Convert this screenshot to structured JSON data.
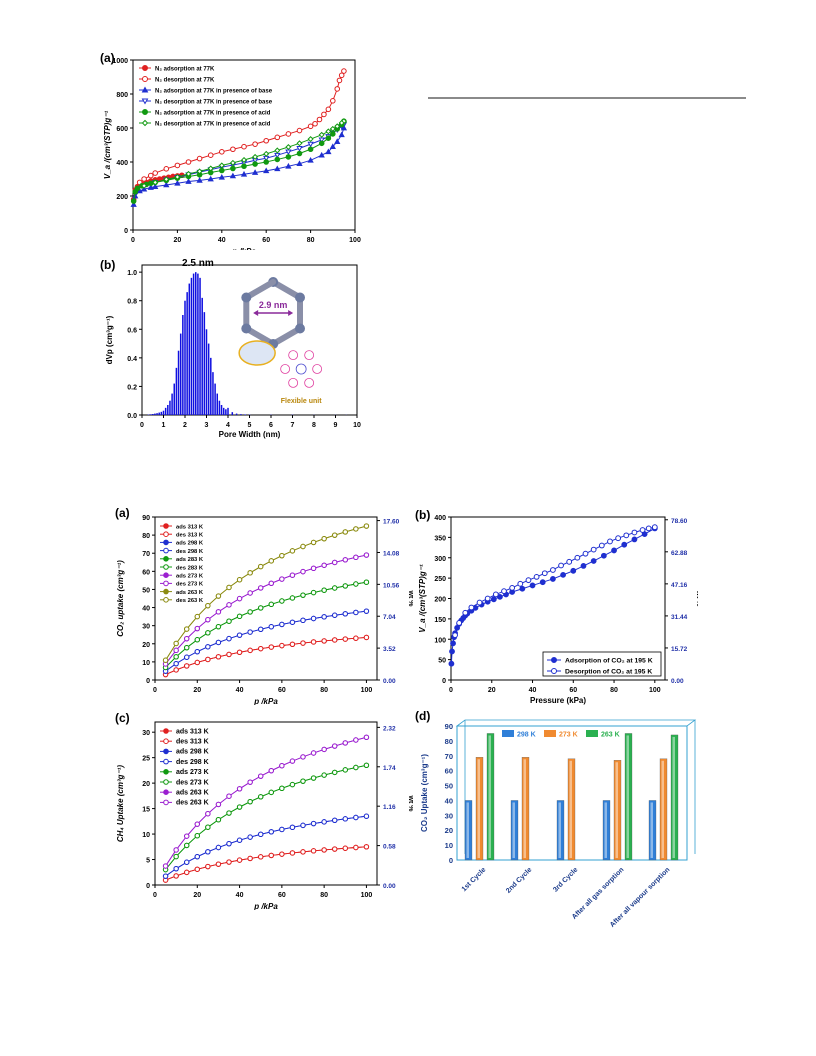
{
  "chart_data": [
    {
      "id": "n2",
      "type": "line",
      "panel_label": "(a)",
      "xlabel": "p /kPa",
      "ylabel": "V_a /(cm³(STP)g⁻¹",
      "xlim": [
        0,
        100
      ],
      "ylim": [
        0,
        1000
      ],
      "xticks": [
        "0",
        "20",
        "40",
        "60",
        "80",
        "100"
      ],
      "yticks": [
        "0",
        "200",
        "400",
        "600",
        "800",
        "1000"
      ],
      "legend_position": "top-left",
      "series": [
        {
          "name": "N₂ adsorption at 77K",
          "color": "#e02020",
          "marker": "circle",
          "filled": true,
          "x": [
            0.3,
            1,
            2,
            4,
            6,
            8,
            10,
            12,
            14,
            16,
            18,
            20,
            22
          ],
          "y": [
            180,
            235,
            255,
            270,
            280,
            288,
            295,
            300,
            305,
            310,
            315,
            318,
            322
          ]
        },
        {
          "name": "N₂ desorption at 77K",
          "color": "#e02020",
          "marker": "circle",
          "filled": false,
          "x": [
            95,
            94,
            93,
            92,
            90,
            88,
            86,
            84,
            82,
            80,
            75,
            70,
            65,
            60,
            55,
            50,
            45,
            40,
            35,
            30,
            25,
            20,
            15,
            10,
            8,
            5,
            3
          ],
          "y": [
            935,
            910,
            880,
            830,
            760,
            710,
            680,
            650,
            625,
            610,
            585,
            565,
            545,
            525,
            505,
            490,
            475,
            460,
            440,
            420,
            400,
            380,
            360,
            335,
            320,
            300,
            280
          ]
        },
        {
          "name": "N₂ adsorption at 77K in presence of base",
          "color": "#1f2fd0",
          "marker": "triangle",
          "filled": true,
          "x": [
            0.3,
            1,
            3,
            5,
            8,
            10,
            15,
            20,
            25,
            30,
            35,
            40,
            45,
            50,
            55,
            60,
            65,
            70,
            75,
            80,
            85,
            88,
            90,
            92,
            94,
            95
          ],
          "y": [
            150,
            200,
            230,
            240,
            250,
            255,
            265,
            275,
            285,
            292,
            300,
            310,
            318,
            328,
            338,
            348,
            360,
            375,
            390,
            410,
            440,
            460,
            490,
            520,
            560,
            600
          ]
        },
        {
          "name": "N₂ desorption at 77K in presence of base",
          "color": "#1f2fd0",
          "marker": "triangle-down",
          "filled": false,
          "x": [
            95,
            94,
            92,
            90,
            88,
            85,
            80,
            75,
            70,
            65,
            60,
            55,
            50,
            45,
            40,
            35,
            30,
            25,
            20,
            15,
            10,
            5
          ],
          "y": [
            620,
            610,
            590,
            570,
            550,
            530,
            505,
            480,
            460,
            440,
            422,
            410,
            395,
            382,
            370,
            355,
            340,
            325,
            310,
            295,
            280,
            255
          ]
        },
        {
          "name": "N₂ adsorption at 77K in presence of acid",
          "color": "#119911",
          "marker": "circle",
          "filled": true,
          "x": [
            0.3,
            1,
            2,
            4,
            6,
            8,
            10,
            15,
            20,
            25,
            30,
            35,
            40,
            45,
            50,
            55,
            60,
            65,
            70,
            75,
            80,
            85,
            88,
            90,
            92,
            94,
            95
          ],
          "y": [
            170,
            225,
            245,
            260,
            268,
            275,
            280,
            292,
            305,
            315,
            325,
            338,
            350,
            362,
            375,
            388,
            400,
            415,
            430,
            450,
            475,
            510,
            540,
            565,
            595,
            620,
            640
          ]
        },
        {
          "name": "N₂ desorption at 77K in presence of acid",
          "color": "#119911",
          "marker": "diamond",
          "filled": false,
          "x": [
            95,
            94,
            92,
            90,
            88,
            85,
            80,
            75,
            70,
            65,
            60,
            55,
            50,
            45,
            40,
            35,
            30,
            25,
            20,
            15,
            10,
            5
          ],
          "y": [
            640,
            630,
            610,
            595,
            580,
            560,
            535,
            510,
            488,
            468,
            448,
            430,
            412,
            395,
            380,
            362,
            345,
            330,
            312,
            298,
            280,
            260
          ]
        }
      ]
    },
    {
      "id": "pore",
      "type": "bar",
      "panel_label": "(b)",
      "xlabel": "Pore Width (nm)",
      "ylabel": "dVp (cm³g⁻¹)",
      "xlim": [
        0,
        10
      ],
      "ylim": [
        0,
        1.05
      ],
      "xticks": [
        "0",
        "1",
        "2",
        "3",
        "4",
        "5",
        "6",
        "7",
        "8",
        "9",
        "10"
      ],
      "yticks": [
        "0.0",
        "0.2",
        "0.4",
        "0.6",
        "0.8",
        "1.0"
      ],
      "annotation_peak": "2.5 nm",
      "annotation_cavity": "2.9 nm",
      "annotation_unit": "Flexible unit",
      "color": "#1010e0",
      "x": [
        0.3,
        0.4,
        0.5,
        0.6,
        0.7,
        0.8,
        0.9,
        1.0,
        1.1,
        1.2,
        1.3,
        1.4,
        1.5,
        1.6,
        1.7,
        1.8,
        1.9,
        2.0,
        2.1,
        2.2,
        2.3,
        2.4,
        2.5,
        2.6,
        2.7,
        2.8,
        2.9,
        3.0,
        3.1,
        3.2,
        3.3,
        3.4,
        3.5,
        3.6,
        3.7,
        3.8,
        3.9,
        4.0,
        4.2,
        4.4,
        4.6,
        4.8,
        5.0,
        6.0,
        7.0,
        8.0,
        9.0,
        9.5
      ],
      "values": [
        0.003,
        0.005,
        0.007,
        0.01,
        0.013,
        0.017,
        0.022,
        0.03,
        0.05,
        0.07,
        0.1,
        0.15,
        0.22,
        0.33,
        0.45,
        0.57,
        0.7,
        0.8,
        0.86,
        0.92,
        0.96,
        0.99,
        1.0,
        0.99,
        0.96,
        0.82,
        0.72,
        0.6,
        0.5,
        0.4,
        0.3,
        0.22,
        0.15,
        0.1,
        0.07,
        0.05,
        0.04,
        0.05,
        0.02,
        0.01,
        0.006,
        0.004,
        0.003,
        0.002,
        0.002,
        0.001,
        0.001,
        0.001
      ]
    },
    {
      "id": "co2",
      "type": "line",
      "panel_label": "(a)",
      "xlabel": "p /kPa",
      "ylabel": "CO₂ uptake (cm³g⁻¹)",
      "ylabel_right": "wt %",
      "xlim": [
        0,
        105
      ],
      "ylim": [
        0,
        90
      ],
      "xticks": [
        "0",
        "20",
        "40",
        "60",
        "80",
        "100"
      ],
      "yticks": [
        "0",
        "10",
        "20",
        "30",
        "40",
        "50",
        "60",
        "70",
        "80",
        "90"
      ],
      "right_ticks": [
        "0.00",
        "3.52",
        "7.04",
        "10.56",
        "14.08",
        "17.60"
      ],
      "legend_position": "top-left",
      "series": [
        {
          "name": "ads 313 K",
          "color": "#e02020",
          "filled": true,
          "ymax": 23.5
        },
        {
          "name": "des 313 K",
          "color": "#e02020",
          "filled": false,
          "ymax": 23.5
        },
        {
          "name": "ads 298 K",
          "color": "#1f2fd0",
          "filled": true,
          "ymax": 38
        },
        {
          "name": "des 298 K",
          "color": "#1f2fd0",
          "filled": false,
          "ymax": 38
        },
        {
          "name": "ads 283 K",
          "color": "#119911",
          "filled": true,
          "ymax": 54
        },
        {
          "name": "des 283 K",
          "color": "#119911",
          "filled": false,
          "ymax": 54
        },
        {
          "name": "ads 273 K",
          "color": "#9b1fd0",
          "filled": true,
          "ymax": 69
        },
        {
          "name": "des 273 K",
          "color": "#9b1fd0",
          "filled": false,
          "ymax": 69
        },
        {
          "name": "ads 263 K",
          "color": "#8b8b10",
          "filled": true,
          "ymax": 85
        },
        {
          "name": "des 263 K",
          "color": "#8b8b10",
          "filled": false,
          "ymax": 85
        }
      ]
    },
    {
      "id": "co2-195",
      "type": "line",
      "panel_label": "(b)",
      "xlabel": "Pressure (kPa)",
      "ylabel": "V_a /(cm³(STP)g⁻¹",
      "ylabel_right": "wt %",
      "xlim": [
        0,
        105
      ],
      "ylim": [
        0,
        400
      ],
      "xticks": [
        "0",
        "20",
        "40",
        "60",
        "80",
        "100"
      ],
      "yticks": [
        "0",
        "50",
        "100",
        "150",
        "200",
        "250",
        "300",
        "350",
        "400"
      ],
      "right_ticks": [
        "0.00",
        "15.72",
        "31.44",
        "47.16",
        "62.88",
        "78.60"
      ],
      "legend_position": "bottom-right",
      "series": [
        {
          "name": "Adsorption of CO₂ at 195 K",
          "color": "#1f2fd0",
          "filled": true,
          "x": [
            0.2,
            0.5,
            1,
            1.5,
            2,
            3,
            4,
            5,
            6,
            7,
            8,
            10,
            12,
            15,
            18,
            21,
            24,
            27,
            30,
            35,
            40,
            45,
            50,
            55,
            60,
            65,
            70,
            75,
            80,
            85,
            90,
            95,
            100
          ],
          "y": [
            40,
            70,
            90,
            105,
            115,
            128,
            138,
            146,
            152,
            158,
            163,
            170,
            177,
            185,
            192,
            198,
            204,
            210,
            216,
            224,
            232,
            240,
            248,
            258,
            268,
            280,
            292,
            305,
            318,
            332,
            345,
            358,
            372
          ]
        },
        {
          "name": "Desorption of CO₂ at 195 K",
          "color": "#1f2fd0",
          "filled": false,
          "x": [
            100,
            97,
            94,
            90,
            86,
            82,
            78,
            74,
            70,
            66,
            62,
            58,
            54,
            50,
            46,
            42,
            38,
            34,
            30,
            26,
            22,
            18,
            14,
            10,
            7,
            4,
            2
          ],
          "y": [
            375,
            372,
            368,
            362,
            355,
            348,
            340,
            330,
            320,
            310,
            300,
            290,
            281,
            270,
            262,
            253,
            245,
            236,
            226,
            218,
            210,
            200,
            190,
            178,
            165,
            140,
            110
          ]
        }
      ]
    },
    {
      "id": "ch4",
      "type": "line",
      "panel_label": "(c)",
      "xlabel": "p /kPa",
      "ylabel": "CH₄ Uptake (cm³g⁻¹)",
      "ylabel_right": "wt %",
      "xlim": [
        0,
        105
      ],
      "ylim": [
        0,
        32
      ],
      "xticks": [
        "0",
        "20",
        "40",
        "60",
        "80",
        "100"
      ],
      "yticks": [
        "0",
        "5",
        "10",
        "15",
        "20",
        "25",
        "30"
      ],
      "right_ticks": [
        "0.00",
        "0.58",
        "1.16",
        "1.74",
        "2.32"
      ],
      "legend_position": "top-left",
      "series": [
        {
          "name": "ads 313 K",
          "color": "#e02020",
          "filled": true,
          "ymax": 7.5
        },
        {
          "name": "des 313 K",
          "color": "#e02020",
          "filled": false,
          "ymax": 7.5
        },
        {
          "name": "ads 298 K",
          "color": "#1f2fd0",
          "filled": true,
          "ymax": 13.5
        },
        {
          "name": "des 298 K",
          "color": "#1f2fd0",
          "filled": false,
          "ymax": 13.5
        },
        {
          "name": "ads 273 K",
          "color": "#119911",
          "filled": true,
          "ymax": 23.5
        },
        {
          "name": "des 273 K",
          "color": "#119911",
          "filled": false,
          "ymax": 23.5
        },
        {
          "name": "ads 263 K",
          "color": "#9b1fd0",
          "filled": true,
          "ymax": 29
        },
        {
          "name": "des 263 K",
          "color": "#9b1fd0",
          "filled": false,
          "ymax": 29
        }
      ]
    },
    {
      "id": "cycles",
      "type": "bar",
      "panel_label": "(d)",
      "ylabel": "CO₂ Uptake (cm³g⁻¹)",
      "ylim": [
        0,
        90
      ],
      "yticks": [
        "0",
        "10",
        "20",
        "30",
        "40",
        "50",
        "60",
        "70",
        "80",
        "90"
      ],
      "categories": [
        "1st Cycle",
        "2nd Cycle",
        "3rd Cycle",
        "After all gas sorption",
        "After all vapour sorption"
      ],
      "series": [
        {
          "name": "298 K",
          "color": "#2f7fd8",
          "values": [
            40,
            40,
            40,
            40,
            40
          ]
        },
        {
          "name": "273 K",
          "color": "#f08a30",
          "values": [
            69,
            69,
            68,
            67,
            68
          ]
        },
        {
          "name": "263 K",
          "color": "#2ab050",
          "values": [
            85,
            null,
            null,
            85,
            84
          ]
        }
      ]
    }
  ]
}
